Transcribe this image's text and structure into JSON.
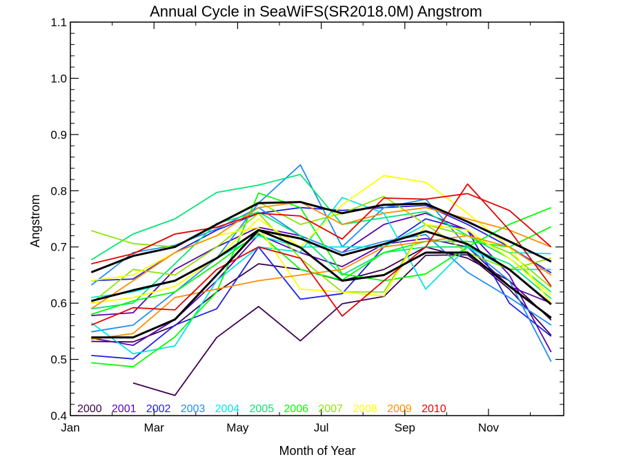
{
  "chart_data": {
    "type": "line",
    "title": "Annual Cycle in SeaWiFS(SR2018.0M) Angstrom",
    "xlabel": "Month of Year",
    "ylabel": "Angstrom",
    "xlim": [
      1,
      12.8
    ],
    "ylim": [
      0.4,
      1.1
    ],
    "x_ticks": [
      {
        "value": 1,
        "label": "Jan"
      },
      {
        "value": 3,
        "label": "Mar"
      },
      {
        "value": 5,
        "label": "May"
      },
      {
        "value": 7,
        "label": "Jul"
      },
      {
        "value": 9,
        "label": "Sep"
      },
      {
        "value": 11,
        "label": "Nov"
      }
    ],
    "y_ticks": [
      {
        "value": 0.4,
        "label": "0.4"
      },
      {
        "value": 0.5,
        "label": "0.5"
      },
      {
        "value": 0.6,
        "label": "0.6"
      },
      {
        "value": 0.7,
        "label": "0.7"
      },
      {
        "value": 0.8,
        "label": "0.8"
      },
      {
        "value": 0.9,
        "label": "0.9"
      },
      {
        "value": 1.0,
        "label": "1.0"
      },
      {
        "value": 1.1,
        "label": "1.1"
      }
    ],
    "grid": false,
    "legend_position": "bottom-left",
    "x": [
      1.5,
      2.5,
      3.5,
      4.5,
      5.5,
      6.5,
      7.5,
      8.5,
      9.5,
      10.5,
      11.5,
      12.5
    ],
    "series": [
      {
        "name": "2000",
        "color": "#3c0050",
        "values": [
          null,
          0.458,
          0.436,
          0.539,
          0.594,
          0.533,
          0.599,
          0.612,
          0.685,
          0.686,
          0.625,
          0.543
        ]
      },
      {
        "name": "2000",
        "color": "#3c0050",
        "values": [
          0.532,
          0.531,
          0.56,
          0.62,
          0.67,
          0.66,
          0.64,
          0.66,
          0.7,
          0.68,
          0.64,
          0.57
        ]
      },
      {
        "name": "2001",
        "color": "#5a00b4",
        "values": [
          0.538,
          0.525,
          0.571,
          0.64,
          0.722,
          0.69,
          0.665,
          0.705,
          0.715,
          0.7,
          0.63,
          0.6
        ]
      },
      {
        "name": "2001",
        "color": "#5a00b4",
        "values": [
          0.578,
          0.583,
          0.66,
          0.7,
          0.735,
          0.72,
          0.69,
          0.74,
          0.76,
          0.73,
          0.65,
          0.513
        ]
      },
      {
        "name": "2002",
        "color": "#1e1ee6",
        "values": [
          0.507,
          0.501,
          0.561,
          0.59,
          0.7,
          0.607,
          0.617,
          0.7,
          0.75,
          0.73,
          0.6,
          0.541
        ]
      },
      {
        "name": "2002",
        "color": "#1e1ee6",
        "values": [
          0.64,
          0.643,
          0.69,
          0.73,
          0.76,
          0.77,
          0.765,
          0.77,
          0.774,
          0.74,
          0.7,
          0.654
        ]
      },
      {
        "name": "2003",
        "color": "#1e8cf0",
        "values": [
          0.549,
          0.561,
          0.62,
          0.68,
          0.778,
          0.846,
          0.7,
          0.77,
          0.785,
          0.7,
          0.64,
          0.496
        ]
      },
      {
        "name": "2003",
        "color": "#1e8cf0",
        "values": [
          0.632,
          0.69,
          0.703,
          0.732,
          0.77,
          0.72,
          0.69,
          0.71,
          0.722,
          0.655,
          0.61,
          0.561
        ]
      },
      {
        "name": "2004",
        "color": "#00e6e6",
        "values": [
          0.565,
          0.51,
          0.524,
          0.64,
          0.7,
          0.691,
          0.788,
          0.76,
          0.625,
          0.7,
          0.66,
          0.66
        ]
      },
      {
        "name": "2004",
        "color": "#00e6e6",
        "values": [
          0.61,
          0.62,
          0.64,
          0.68,
          0.72,
          0.7,
          0.7,
          0.7,
          0.74,
          0.72,
          0.69,
          0.688
        ]
      },
      {
        "name": "2005",
        "color": "#00e673",
        "values": [
          0.677,
          0.723,
          0.75,
          0.797,
          0.81,
          0.829,
          0.74,
          0.752,
          0.763,
          0.72,
          0.68,
          0.62
        ]
      },
      {
        "name": "2005",
        "color": "#00e673",
        "values": [
          0.59,
          0.6,
          0.67,
          0.742,
          0.762,
          0.72,
          0.65,
          0.69,
          0.7,
          0.7,
          0.67,
          0.608
        ]
      },
      {
        "name": "2006",
        "color": "#00ff00",
        "values": [
          0.494,
          0.487,
          0.54,
          0.62,
          0.796,
          0.77,
          0.652,
          0.64,
          0.652,
          0.7,
          0.74,
          0.77
        ]
      },
      {
        "name": "2006",
        "color": "#00ff00",
        "values": [
          0.58,
          0.604,
          0.62,
          0.67,
          0.725,
          0.66,
          0.641,
          0.69,
          0.71,
          0.71,
          0.7,
          0.736
        ]
      },
      {
        "name": "2007",
        "color": "#8ce600",
        "values": [
          0.729,
          0.706,
          0.7,
          0.74,
          0.78,
          0.74,
          0.76,
          0.79,
          0.74,
          0.69,
          0.66,
          0.68
        ]
      },
      {
        "name": "2007",
        "color": "#8ce600",
        "values": [
          0.6,
          0.66,
          0.65,
          0.7,
          0.76,
          0.68,
          0.62,
          0.62,
          0.74,
          0.72,
          0.69,
          0.628
        ]
      },
      {
        "name": "2008",
        "color": "#ffff00",
        "values": [
          0.6,
          0.61,
          0.63,
          0.68,
          0.75,
          0.7,
          0.775,
          0.827,
          0.815,
          0.76,
          0.7,
          0.6
        ]
      },
      {
        "name": "2008",
        "color": "#ffff00",
        "values": [
          0.64,
          0.65,
          0.69,
          0.72,
          0.735,
          0.625,
          0.62,
          0.613,
          0.74,
          0.73,
          0.68,
          0.614
        ]
      },
      {
        "name": "2009",
        "color": "#ff8c00",
        "values": [
          0.536,
          0.546,
          0.61,
          0.625,
          0.64,
          0.65,
          0.66,
          0.7,
          0.71,
          0.72,
          0.7,
          0.65
        ]
      },
      {
        "name": "2009",
        "color": "#ff8c00",
        "values": [
          0.59,
          0.64,
          0.69,
          0.72,
          0.77,
          0.78,
          0.74,
          0.76,
          0.77,
          0.75,
          0.73,
          0.7
        ]
      },
      {
        "name": "2010",
        "color": "#e60000",
        "values": [
          0.561,
          0.592,
          0.588,
          0.66,
          0.7,
          0.68,
          0.577,
          0.64,
          0.7,
          0.812,
          0.73,
          0.63
        ]
      },
      {
        "name": "2010",
        "color": "#e60000",
        "values": [
          0.67,
          0.688,
          0.723,
          0.735,
          0.76,
          0.755,
          0.714,
          0.787,
          0.785,
          0.795,
          0.765,
          0.7
        ]
      },
      {
        "name": "",
        "color": "#000000",
        "values": [
          0.539,
          0.539,
          0.571,
          0.65,
          0.73,
          0.699,
          0.64,
          0.65,
          0.69,
          0.69,
          0.63,
          0.574
        ]
      },
      {
        "name": "",
        "color": "#000000",
        "values": [
          0.604,
          0.623,
          0.64,
          0.68,
          0.73,
          0.715,
          0.685,
          0.705,
          0.728,
          0.705,
          0.66,
          0.598
        ]
      },
      {
        "name": "",
        "color": "#000000",
        "values": [
          0.655,
          0.684,
          0.7,
          0.74,
          0.778,
          0.78,
          0.76,
          0.775,
          0.777,
          0.745,
          0.71,
          0.674
        ]
      }
    ],
    "legend": [
      {
        "label": "2000",
        "color": "#3c0050"
      },
      {
        "label": "2001",
        "color": "#5a00b4"
      },
      {
        "label": "2002",
        "color": "#1e1ee6"
      },
      {
        "label": "2003",
        "color": "#1e8cf0"
      },
      {
        "label": "2004",
        "color": "#00e6e6"
      },
      {
        "label": "2005",
        "color": "#00e673"
      },
      {
        "label": "2006",
        "color": "#00ff00"
      },
      {
        "label": "2007",
        "color": "#8ce600"
      },
      {
        "label": "2008",
        "color": "#ffff00"
      },
      {
        "label": "2009",
        "color": "#ff8c00"
      },
      {
        "label": "2010",
        "color": "#e60000"
      }
    ]
  }
}
